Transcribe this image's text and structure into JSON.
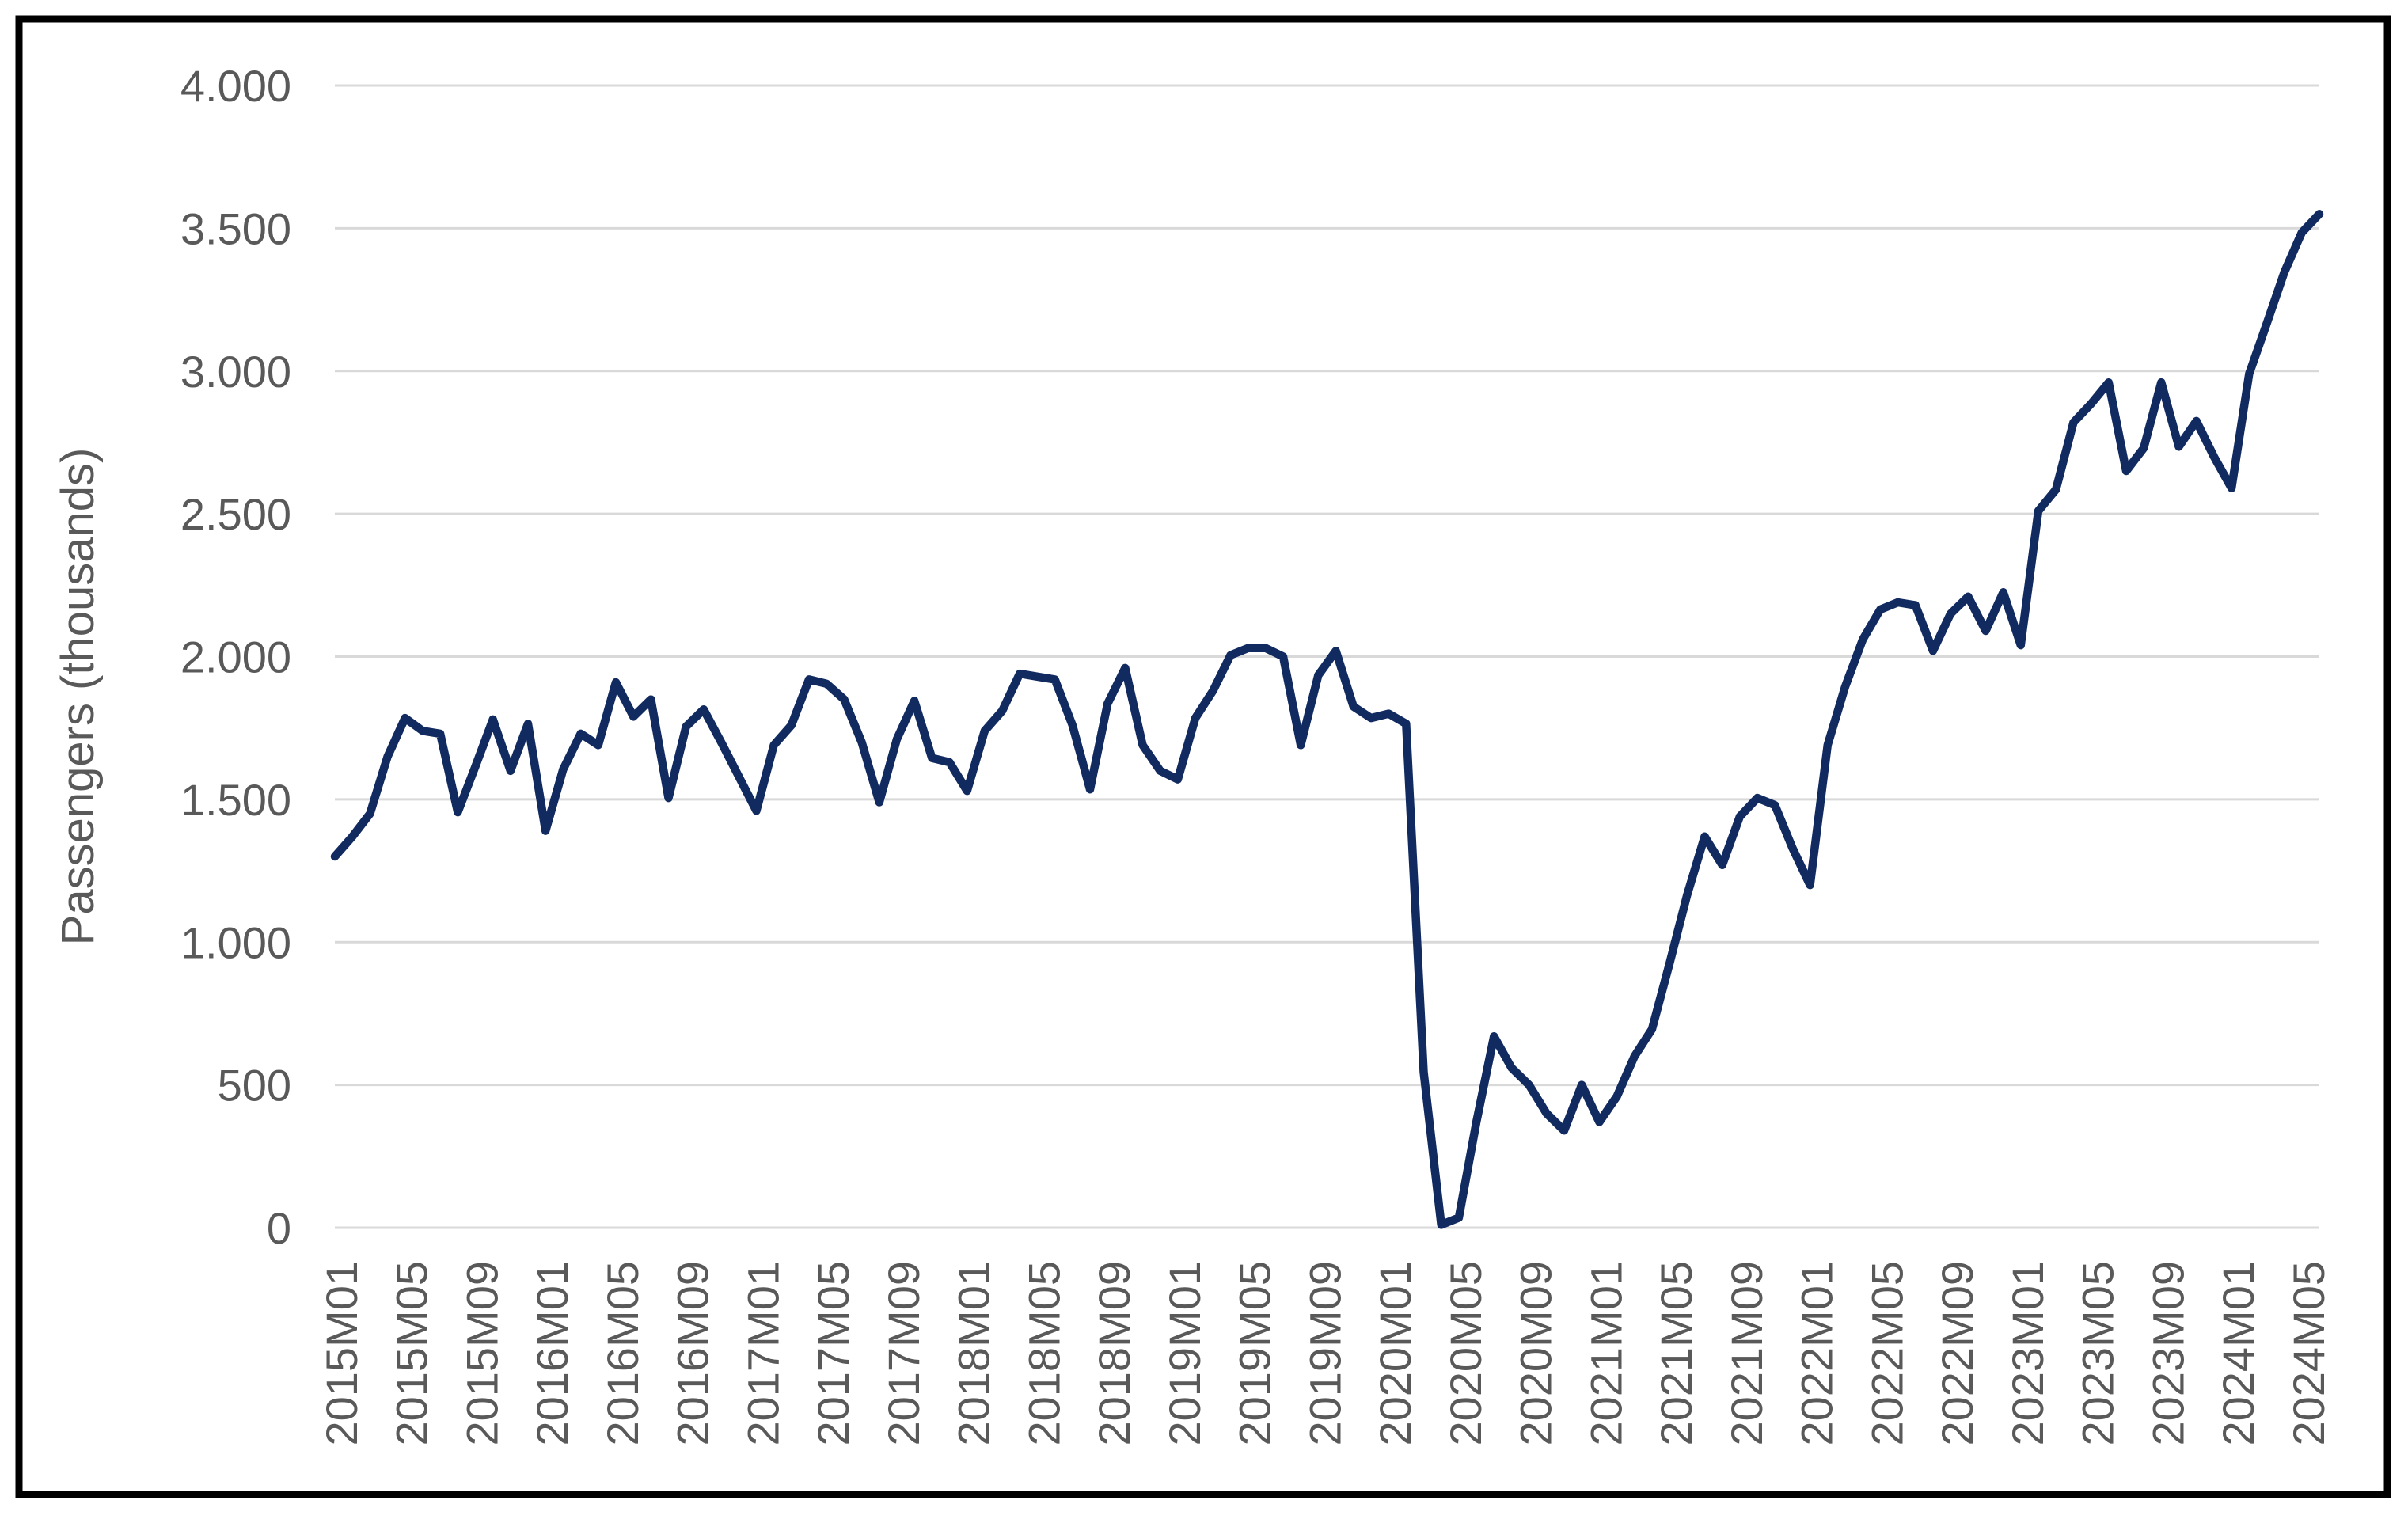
{
  "window": {
    "background_color": "#ffffff",
    "border_color": "#000000"
  },
  "chart_data": {
    "type": "line",
    "title": "",
    "xlabel": "",
    "ylabel": "Passengers (thousands)",
    "ylim": [
      0,
      4000
    ],
    "y_tick_interval": 500,
    "y_tick_labels_top_to_bottom": [
      "4.000",
      "3.500",
      "3.000",
      "2.500",
      "2.000",
      "1.500",
      "1.000",
      "500",
      "0"
    ],
    "x_label_every": 4,
    "visible_x_tick_labels": [
      "2015M01",
      "2015M05",
      "2015M09",
      "2016M01",
      "2016M05",
      "2016M09",
      "2017M01",
      "2017M05",
      "2017M09",
      "2018M01",
      "2018M05",
      "2018M09",
      "2019M01",
      "2019M05",
      "2019M09",
      "2020M01",
      "2020M05",
      "2020M09",
      "2021M01",
      "2021M05",
      "2021M09",
      "2022M01",
      "2022M05",
      "2022M09",
      "2023M01",
      "2023M05",
      "2023M09",
      "2024M01",
      "2024M05"
    ],
    "grid": true,
    "legend_position": "none",
    "line_color": "#112a60",
    "grid_color": "#d9d9d9",
    "label_color": "#595959",
    "x": [
      "2015M01",
      "2015M02",
      "2015M03",
      "2015M04",
      "2015M05",
      "2015M06",
      "2015M07",
      "2015M08",
      "2015M09",
      "2015M10",
      "2015M11",
      "2015M12",
      "2016M01",
      "2016M02",
      "2016M03",
      "2016M04",
      "2016M05",
      "2016M06",
      "2016M07",
      "2016M08",
      "2016M09",
      "2016M10",
      "2016M11",
      "2016M12",
      "2017M01",
      "2017M02",
      "2017M03",
      "2017M04",
      "2017M05",
      "2017M06",
      "2017M07",
      "2017M08",
      "2017M09",
      "2017M10",
      "2017M11",
      "2017M12",
      "2018M01",
      "2018M02",
      "2018M03",
      "2018M04",
      "2018M05",
      "2018M06",
      "2018M07",
      "2018M08",
      "2018M09",
      "2018M10",
      "2018M11",
      "2018M12",
      "2019M01",
      "2019M02",
      "2019M03",
      "2019M04",
      "2019M05",
      "2019M06",
      "2019M07",
      "2019M08",
      "2019M09",
      "2019M10",
      "2019M11",
      "2019M12",
      "2020M01",
      "2020M02",
      "2020M03",
      "2020M04",
      "2020M05",
      "2020M06",
      "2020M07",
      "2020M08",
      "2020M09",
      "2020M10",
      "2020M11",
      "2020M12",
      "2021M01",
      "2021M02",
      "2021M03",
      "2021M04",
      "2021M05",
      "2021M06",
      "2021M07",
      "2021M08",
      "2021M09",
      "2021M10",
      "2021M11",
      "2021M12",
      "2022M01",
      "2022M02",
      "2022M03",
      "2022M04",
      "2022M05",
      "2022M06",
      "2022M07",
      "2022M08",
      "2022M09",
      "2022M10",
      "2022M11",
      "2022M12",
      "2023M01",
      "2023M02",
      "2023M03",
      "2023M04",
      "2023M05",
      "2023M06",
      "2023M07",
      "2023M08",
      "2023M09",
      "2023M10",
      "2023M11",
      "2023M12",
      "2024M01",
      "2024M02",
      "2024M03",
      "2024M04",
      "2024M05",
      "2024M06"
    ],
    "values": [
      1300,
      1370,
      1450,
      1650,
      1785,
      1740,
      1730,
      1455,
      1615,
      1780,
      1600,
      1765,
      1390,
      1605,
      1730,
      1690,
      1910,
      1790,
      1850,
      1505,
      1755,
      1815,
      1700,
      1580,
      1460,
      1690,
      1760,
      1920,
      1905,
      1850,
      1700,
      1490,
      1710,
      1845,
      1645,
      1630,
      1530,
      1740,
      1810,
      1940,
      1930,
      1920,
      1760,
      1535,
      1835,
      1960,
      1690,
      1600,
      1570,
      1785,
      1880,
      2005,
      2030,
      2030,
      2000,
      1690,
      1935,
      2020,
      1825,
      1785,
      1800,
      1765,
      545,
      10,
      35,
      370,
      670,
      560,
      500,
      400,
      340,
      500,
      370,
      460,
      600,
      695,
      925,
      1165,
      1370,
      1270,
      1440,
      1505,
      1480,
      1330,
      1200,
      1690,
      1895,
      2060,
      2165,
      2190,
      2180,
      2020,
      2150,
      2210,
      2090,
      2225,
      2040,
      2510,
      2585,
      2820,
      2885,
      2960,
      2650,
      2730,
      2960,
      2735,
      2825,
      2700,
      2590,
      2990,
      3165,
      3345,
      3485,
      3550
    ]
  }
}
